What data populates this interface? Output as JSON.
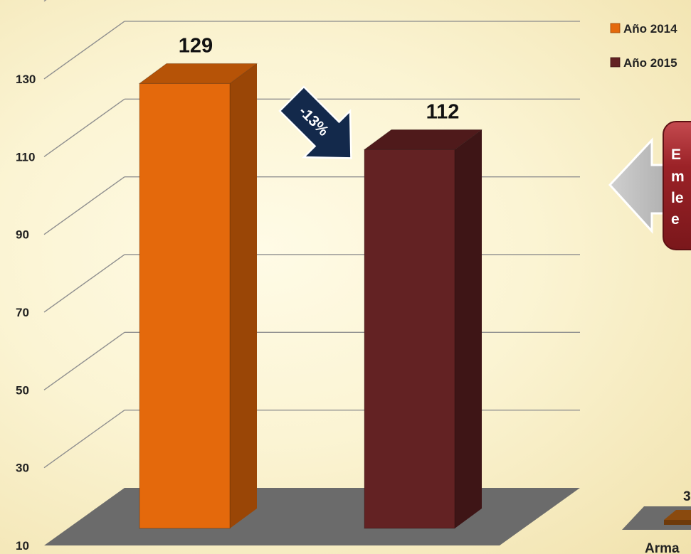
{
  "chart_data": {
    "type": "bar",
    "title": "",
    "xlabel": "",
    "ylabel": "",
    "ylim": [
      10,
      150
    ],
    "yticks": [
      10,
      30,
      50,
      70,
      90,
      110,
      130
    ],
    "grid": true,
    "legend_position": "top-right",
    "series": [
      {
        "name": "Año 2014",
        "values": [
          129
        ],
        "color": "#e4690c"
      },
      {
        "name": "Año 2015",
        "values": [
          112
        ],
        "color": "#632223"
      }
    ],
    "annotations": {
      "change_arrow": "-13%",
      "callout_fragments": [
        "E",
        "m",
        "le",
        "e"
      ]
    },
    "secondary_panel": {
      "value_fragment": "3",
      "category_fragment": "Arma"
    }
  },
  "colors": {
    "arrow_fill": "#13294b",
    "callout_fill": "#9b2227",
    "floor_fill": "#6b6b6b",
    "grid_line": "#8f8f8f"
  }
}
